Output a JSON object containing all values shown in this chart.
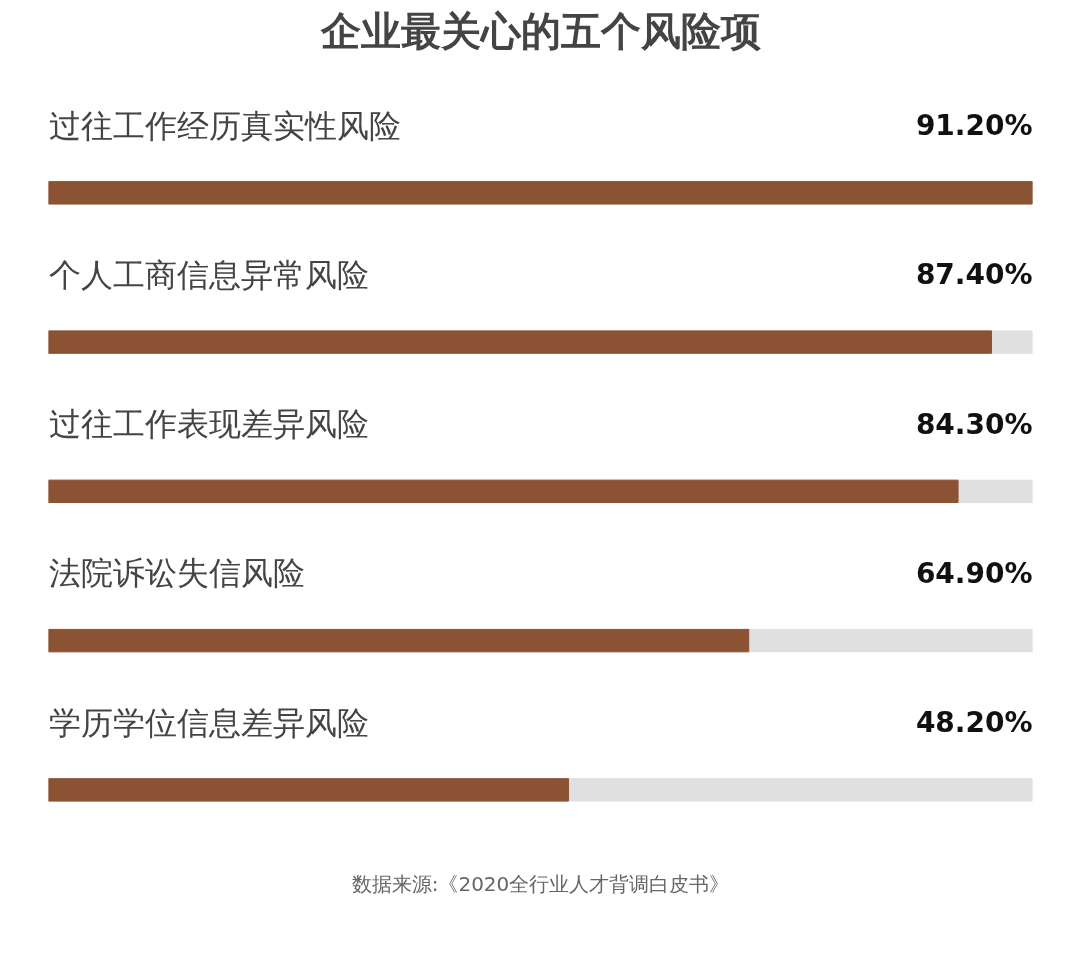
{
  "chart_data": {
    "type": "bar",
    "orientation": "horizontal",
    "title": "企业最关心的五个风险项",
    "categories": [
      "过往工作经历真实性风险",
      "个人工商信息异常风险",
      "过往工作表现差异风险",
      "法院诉讼失信风险",
      "学历学位信息差异风险"
    ],
    "values": [
      91.2,
      87.4,
      84.3,
      64.9,
      48.2
    ],
    "value_labels": [
      "91.20%",
      "87.40%",
      "84.30%",
      "64.90%",
      "48.20%"
    ],
    "color": "#8b5234",
    "xlim": [
      0,
      91.2
    ],
    "grid": false,
    "annotations": [
      "数据来源:《2020全行业人才背调白皮书》"
    ]
  }
}
